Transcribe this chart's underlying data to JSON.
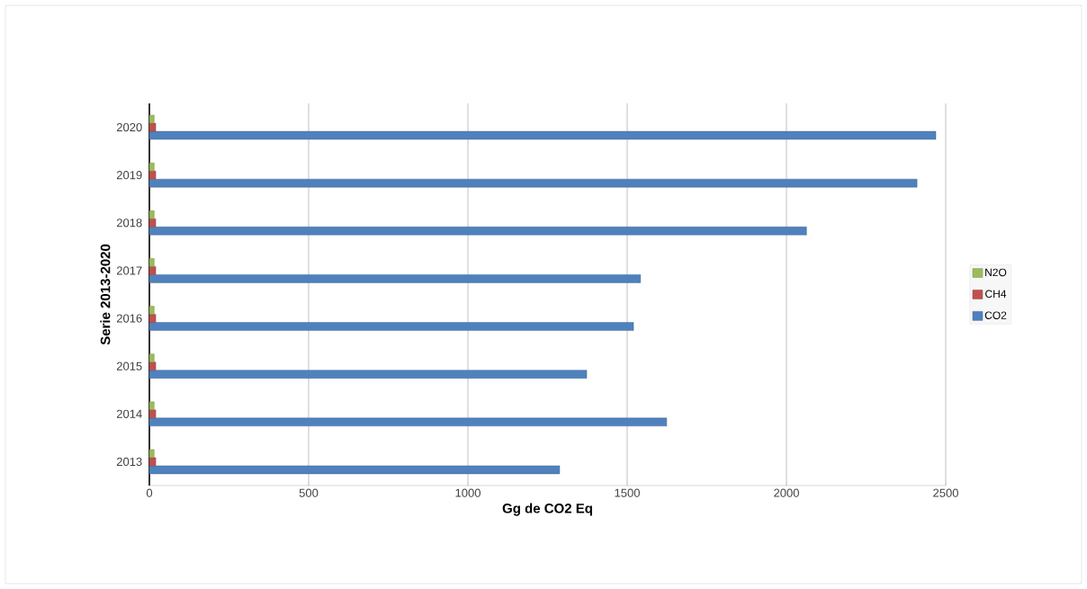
{
  "chart_data": {
    "type": "bar",
    "orientation": "horizontal",
    "xlabel": "Gg de CO2 Eq",
    "ylabel": "Serie 2013-2020",
    "categories": [
      "2020",
      "2019",
      "2018",
      "2017",
      "2016",
      "2015",
      "2014",
      "2013"
    ],
    "series": [
      {
        "name": "CO2",
        "color": "#4f81bd",
        "values": [
          2469,
          2410,
          2063,
          1542,
          1520,
          1373,
          1624,
          1288
        ]
      },
      {
        "name": "CH4",
        "color": "#c0504d",
        "values": [
          20,
          20,
          20,
          20,
          20,
          20,
          20,
          20
        ]
      },
      {
        "name": "N2O",
        "color": "#9bbb59",
        "values": [
          15,
          15,
          15,
          15,
          15,
          15,
          15,
          15
        ]
      }
    ],
    "xlim": [
      0,
      2500
    ],
    "xticks": [
      0,
      500,
      1000,
      1500,
      2000,
      2500
    ],
    "grid": "x",
    "legend": "right"
  }
}
